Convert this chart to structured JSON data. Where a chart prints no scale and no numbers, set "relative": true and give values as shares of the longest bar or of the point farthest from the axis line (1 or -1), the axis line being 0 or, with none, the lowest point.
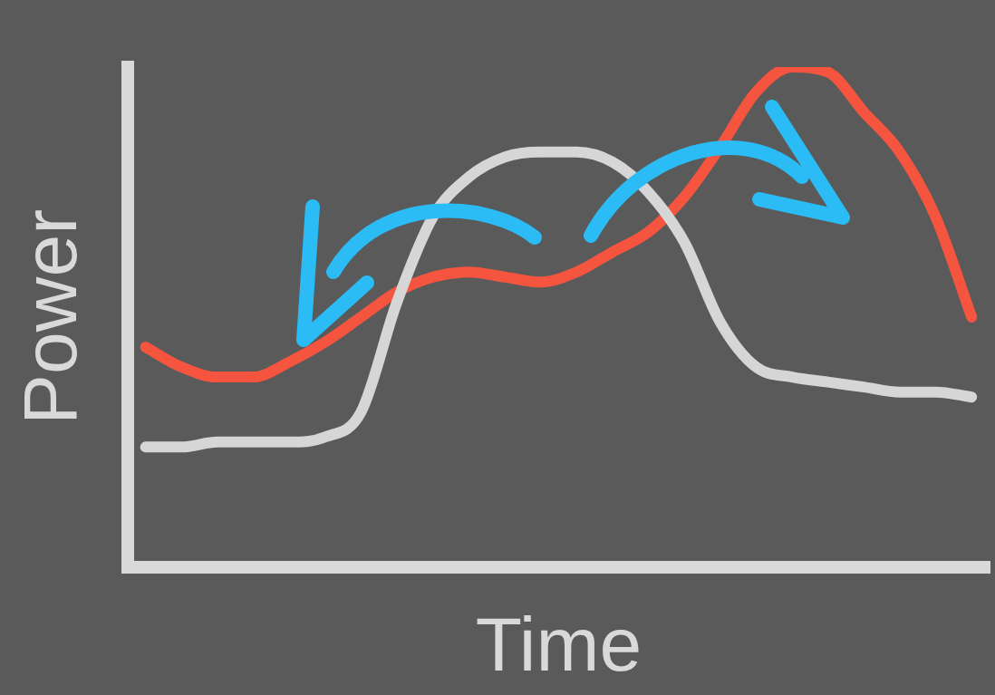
{
  "chart_data": {
    "type": "line",
    "xlabel": "Time",
    "ylabel": "Power",
    "relative": true,
    "marker": "none",
    "line_style": "solid",
    "categories": [
      null,
      null,
      null,
      null,
      null,
      null,
      null,
      null,
      null,
      null,
      null,
      null,
      null,
      null,
      null,
      null,
      null,
      null,
      null,
      null,
      null,
      null,
      null,
      null
    ],
    "series": [
      {
        "color": "#d6d6d6",
        "values": [
          0.24,
          0.24,
          0.25,
          0.25,
          0.25,
          0.26,
          0.31,
          0.53,
          0.7,
          0.78,
          0.82,
          0.83,
          0.83,
          0.81,
          0.75,
          0.65,
          0.49,
          0.4,
          0.38,
          0.37,
          0.36,
          0.35,
          0.35,
          0.34
        ]
      },
      {
        "color": "#f5553f",
        "values": [
          0.44,
          0.4,
          0.38,
          0.38,
          0.41,
          0.45,
          0.5,
          0.55,
          0.58,
          0.59,
          0.58,
          0.57,
          0.59,
          0.63,
          0.67,
          0.74,
          0.84,
          0.95,
          1.0,
          0.99,
          0.91,
          0.83,
          0.7,
          0.5
        ]
      }
    ]
  }
}
